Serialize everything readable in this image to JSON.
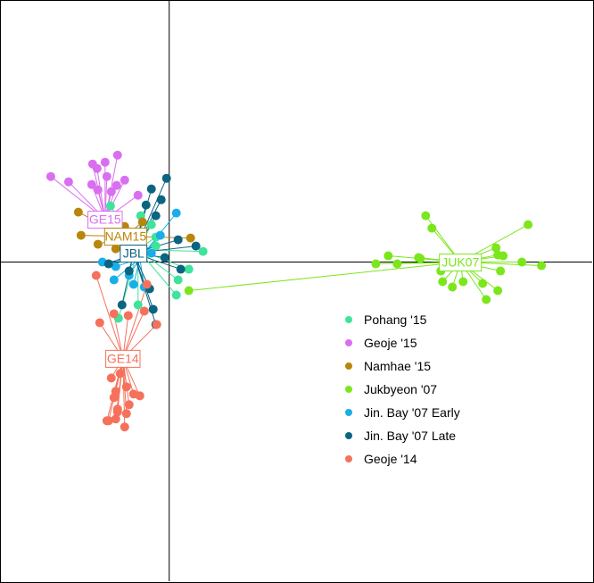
{
  "chart_data": {
    "type": "scatter",
    "title": "",
    "xlabel": "",
    "ylabel": "",
    "xlim": [
      -190,
      475
    ],
    "ylim": [
      -358,
      294
    ],
    "grid": false,
    "legend_position": "center-right",
    "axes_lines": {
      "x": 0,
      "y": 0
    },
    "series": [
      {
        "name": "Pohang '15",
        "label": "",
        "color": "#3fe39b",
        "centroid": [
          -35,
          14
        ],
        "points": [
          [
            -66,
            63
          ],
          [
            -58,
            46
          ],
          [
            -32,
            52
          ],
          [
            -20,
            42
          ],
          [
            -15,
            18
          ],
          [
            38,
            12
          ],
          [
            22,
            -8
          ],
          [
            8,
            -37
          ],
          [
            -57,
            -63
          ],
          [
            -35,
            -48
          ],
          [
            -15,
            28
          ],
          [
            10,
            -20
          ]
        ]
      },
      {
        "name": "Geoje '15",
        "label": "GE15",
        "color": "#d96ff0",
        "centroid": [
          -72,
          48
        ],
        "points": [
          [
            -133,
            96
          ],
          [
            -113,
            90
          ],
          [
            -87,
            87
          ],
          [
            -80,
            81
          ],
          [
            -59,
            86
          ],
          [
            -50,
            92
          ],
          [
            -35,
            75
          ],
          [
            -65,
            79
          ],
          [
            -81,
            105
          ],
          [
            -72,
            112
          ],
          [
            -58,
            120
          ],
          [
            -86,
            110
          ],
          [
            -70,
            96
          ]
        ]
      },
      {
        "name": "Namhae '15",
        "label": "NAM15",
        "color": "#b8860b",
        "centroid": [
          -49,
          29
        ],
        "points": [
          [
            -102,
            56
          ],
          [
            -99,
            30
          ],
          [
            -80,
            20
          ],
          [
            -40,
            20
          ],
          [
            -30,
            45
          ],
          [
            24,
            27
          ],
          [
            -60,
            15
          ],
          [
            -50,
            40
          ]
        ]
      },
      {
        "name": "Jukbyeon '07",
        "label": "JUK07",
        "color": "#7be61c",
        "centroid": [
          327,
          0
        ],
        "points": [
          [
            288,
            52
          ],
          [
            295,
            38
          ],
          [
            403,
            42
          ],
          [
            367,
            16
          ],
          [
            369,
            8
          ],
          [
            375,
            7
          ],
          [
            396,
            0
          ],
          [
            418,
            -4
          ],
          [
            372,
            -10
          ],
          [
            369,
            -32
          ],
          [
            352,
            -24
          ],
          [
            356,
            -42
          ],
          [
            305,
            -10
          ],
          [
            307,
            -22
          ],
          [
            318,
            -28
          ],
          [
            330,
            -22
          ],
          [
            256,
            -2
          ],
          [
            280,
            5
          ],
          [
            282,
            4
          ],
          [
            232,
            -2
          ],
          [
            246,
            7
          ],
          [
            22,
            -32
          ]
        ]
      },
      {
        "name": "Jin. Bay '07 Early",
        "label": "",
        "color": "#1aaee8",
        "centroid": [
          -33,
          4
        ],
        "points": [
          [
            8,
            55
          ],
          [
            -10,
            30
          ],
          [
            -20,
            10
          ],
          [
            -60,
            -5
          ],
          [
            -75,
            0
          ],
          [
            -62,
            -20
          ],
          [
            -40,
            -25
          ],
          [
            -28,
            -28
          ],
          [
            -50,
            20
          ],
          [
            -45,
            -15
          ]
        ]
      },
      {
        "name": "Jin. Bay '07 Late",
        "label": "JBL",
        "color": "#0b6480",
        "centroid": [
          -40,
          10
        ],
        "points": [
          [
            -20,
            82
          ],
          [
            -3,
            94
          ],
          [
            -9,
            70
          ],
          [
            -26,
            64
          ],
          [
            -15,
            52
          ],
          [
            -45,
            -10
          ],
          [
            -68,
            -2
          ],
          [
            -53,
            -48
          ],
          [
            -18,
            -53
          ],
          [
            -15,
            -70
          ],
          [
            -22,
            -30
          ],
          [
            13,
            -8
          ],
          [
            30,
            18
          ],
          [
            10,
            25
          ],
          [
            -5,
            5
          ]
        ]
      },
      {
        "name": "Geoje '14",
        "label": "GE14",
        "color": "#f5715c",
        "centroid": [
          -52,
          -108
        ],
        "points": [
          [
            -78,
            -68
          ],
          [
            -62,
            -58
          ],
          [
            -46,
            -60
          ],
          [
            -28,
            -55
          ],
          [
            -14,
            -70
          ],
          [
            -25,
            -25
          ],
          [
            -82,
            -15
          ],
          [
            -65,
            -130
          ],
          [
            -55,
            -125
          ],
          [
            -60,
            -145
          ],
          [
            -48,
            -140
          ],
          [
            -40,
            -148
          ],
          [
            -33,
            -150
          ],
          [
            -62,
            -152
          ],
          [
            -45,
            -160
          ],
          [
            -58,
            -168
          ],
          [
            -48,
            -170
          ],
          [
            -68,
            -178
          ],
          [
            -60,
            -176
          ],
          [
            -50,
            -185
          ],
          [
            -70,
            -178
          ],
          [
            -58,
            -165
          ]
        ]
      }
    ]
  }
}
